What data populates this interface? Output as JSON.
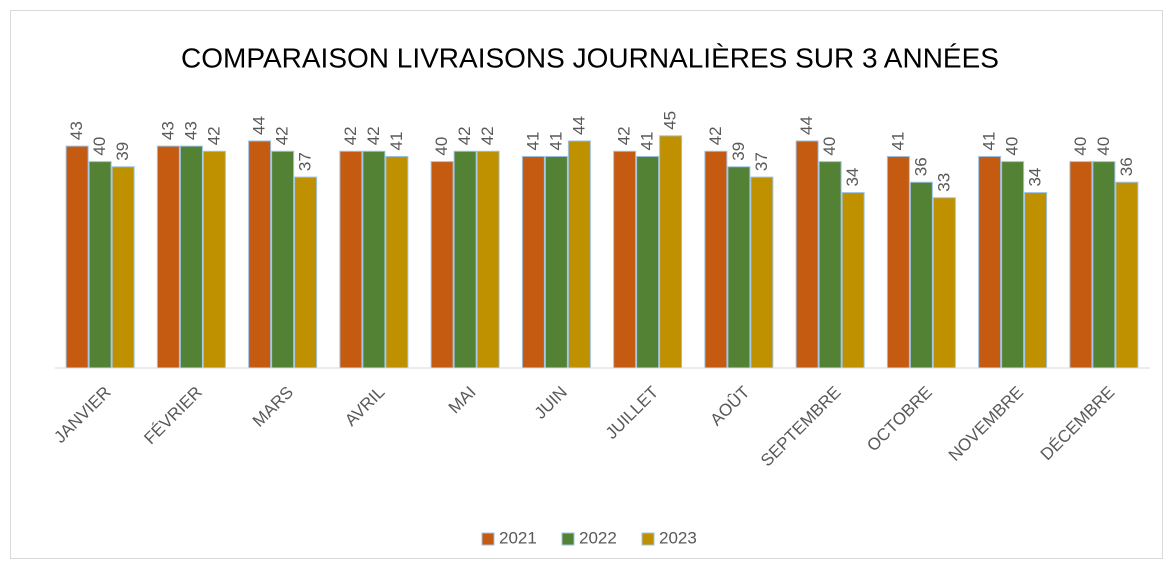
{
  "chart_data": {
    "type": "bar",
    "title": "COMPARAISON LIVRAISONS JOURNALIÈRES SUR 3 ANNÉES",
    "categories": [
      "JANVIER",
      "FÉVRIER",
      "MARS",
      "AVRIL",
      "MAI",
      "JUIN",
      "JUILLET",
      "AOÛT",
      "SEPTEMBRE",
      "OCTOBRE",
      "NOVEMBRE",
      "DÉCEMBRE"
    ],
    "series": [
      {
        "name": "2021",
        "color": "#c55a11",
        "values": [
          43,
          43,
          44,
          42,
          40,
          41,
          42,
          42,
          44,
          41,
          41,
          40
        ]
      },
      {
        "name": "2022",
        "color": "#548235",
        "values": [
          40,
          43,
          42,
          42,
          42,
          41,
          41,
          39,
          40,
          36,
          40,
          40
        ]
      },
      {
        "name": "2023",
        "color": "#bf9000",
        "values": [
          39,
          42,
          37,
          41,
          42,
          44,
          45,
          37,
          34,
          33,
          34,
          36
        ]
      }
    ],
    "ylim": [
      0,
      50
    ],
    "legend": "bottom"
  }
}
